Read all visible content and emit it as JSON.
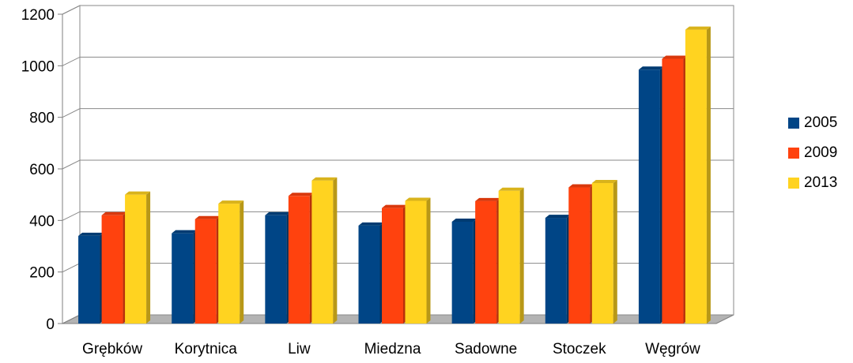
{
  "chart_data": {
    "type": "bar",
    "style": "3d-clustered",
    "categories": [
      "Grębków",
      "Korytnica",
      "Liw",
      "Miedzna",
      "Sadowne",
      "Stoczek",
      "Węgrów"
    ],
    "series": [
      {
        "name": "2005",
        "color": "#004586",
        "values": [
          340,
          350,
          420,
          380,
          395,
          410,
          985
        ]
      },
      {
        "name": "2009",
        "color": "#ff420e",
        "values": [
          420,
          405,
          495,
          448,
          475,
          528,
          1027
        ]
      },
      {
        "name": "2013",
        "color": "#ffd320",
        "values": [
          500,
          465,
          555,
          476,
          515,
          545,
          1140
        ]
      }
    ],
    "ylim": [
      0,
      1200
    ],
    "yticks": [
      0,
      200,
      400,
      600,
      800,
      1000,
      1200
    ],
    "ytick_labels": [
      "0",
      "200",
      "400",
      "600",
      "800",
      "1000",
      "1200"
    ],
    "title": "",
    "xlabel": "",
    "ylabel": "",
    "grid": true,
    "legend_position": "right"
  }
}
